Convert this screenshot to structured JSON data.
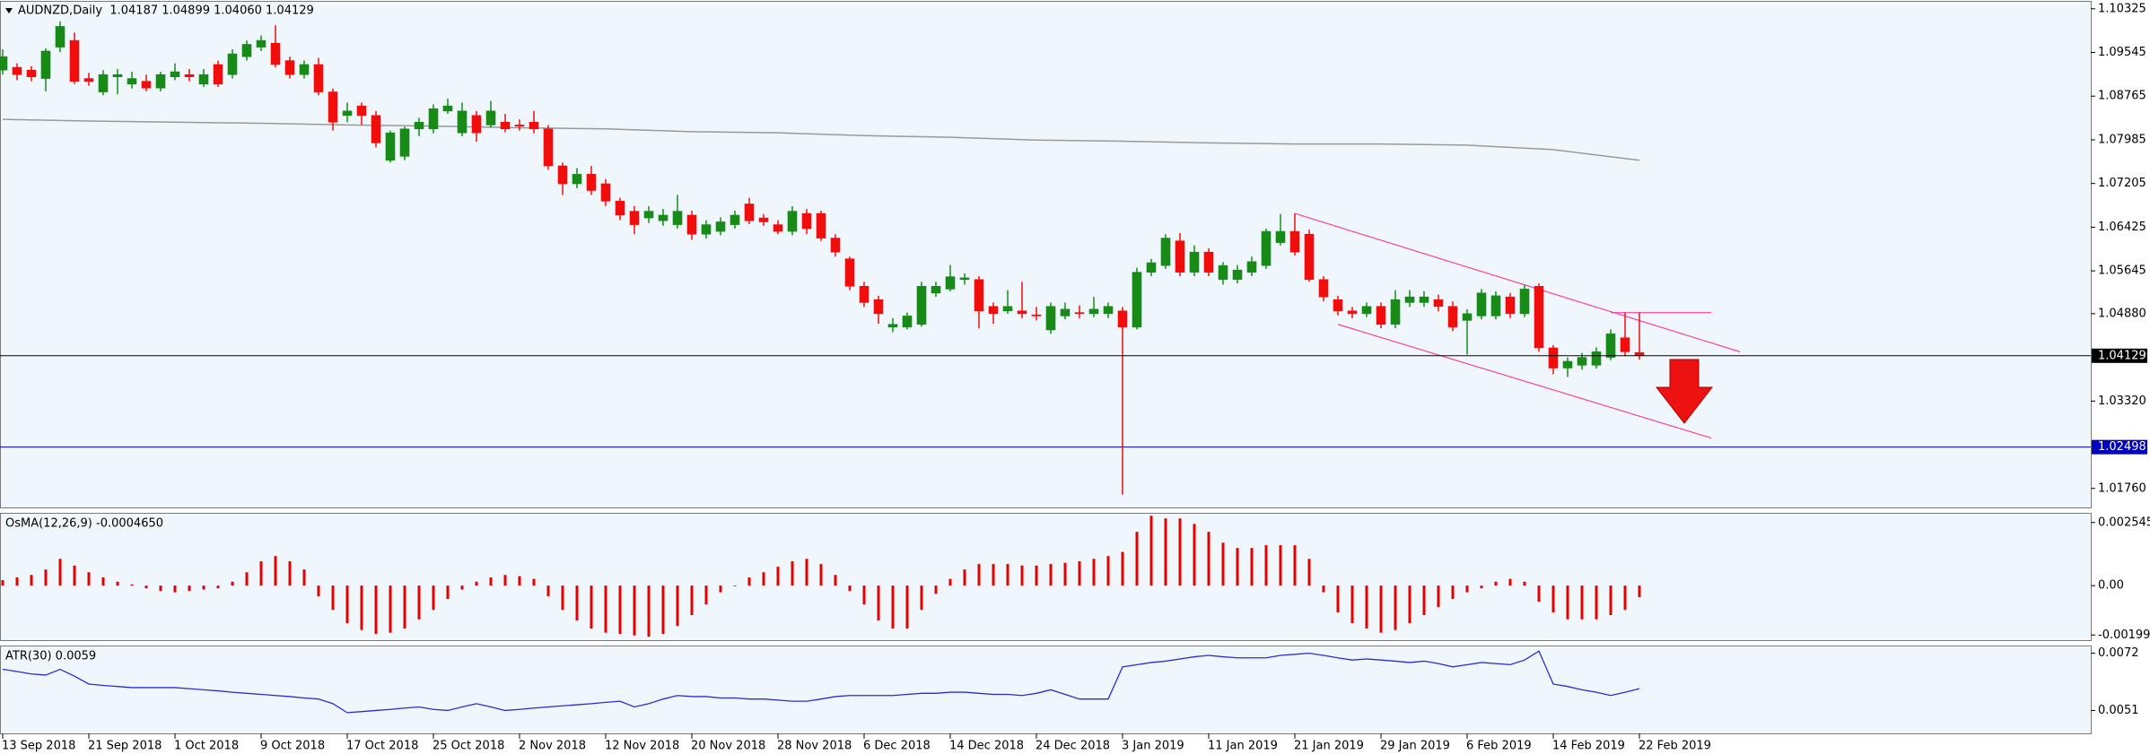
{
  "chart_data": [
    {
      "type": "candlestick",
      "title": "AUDNZD,Daily  1.04187 1.04899 1.04060 1.04129",
      "categories": [
        "13 Sep 2018",
        null,
        null,
        null,
        null,
        null,
        "21 Sep 2018",
        null,
        null,
        null,
        null,
        null,
        "1 Oct 2018",
        null,
        null,
        null,
        null,
        null,
        "9 Oct 2018",
        null,
        null,
        null,
        null,
        null,
        "17 Oct 2018",
        null,
        null,
        null,
        null,
        null,
        "25 Oct 2018",
        null,
        null,
        null,
        null,
        null,
        "2 Nov 2018",
        null,
        null,
        null,
        null,
        null,
        "12 Nov 2018",
        null,
        null,
        null,
        null,
        null,
        "20 Nov 2018",
        null,
        null,
        null,
        null,
        null,
        "28 Nov 2018",
        null,
        null,
        null,
        null,
        null,
        "6 Dec 2018",
        null,
        null,
        null,
        null,
        null,
        "14 Dec 2018",
        null,
        null,
        null,
        null,
        null,
        "24 Dec 2018",
        null,
        null,
        null,
        null,
        null,
        "3 Jan 2019",
        null,
        null,
        null,
        null,
        null,
        "11 Jan 2019",
        null,
        null,
        null,
        null,
        null,
        "21 Jan 2019",
        null,
        null,
        null,
        null,
        null,
        "29 Jan 2019",
        null,
        null,
        null,
        null,
        null,
        "6 Feb 2019",
        null,
        null,
        null,
        null,
        null,
        "14 Feb 2019",
        null,
        null,
        null,
        null,
        null,
        "22 Feb 2019"
      ],
      "open": [
        1.0923,
        1.0928,
        1.0923,
        1.0908,
        1.0964,
        1.0976,
        1.0908,
        1.0884,
        1.0911,
        1.0898,
        1.0903,
        1.0891,
        1.0911,
        1.0915,
        1.0898,
        1.0933,
        1.0915,
        1.0947,
        1.0964,
        1.0971,
        1.094,
        1.0915,
        1.0933,
        1.0884,
        1.0842,
        1.0859,
        1.0842,
        1.0762,
        1.0769,
        1.0818,
        1.0818,
        1.085,
        1.0811,
        1.0842,
        1.0825,
        1.083,
        1.0825,
        1.083,
        1.0818,
        1.0752,
        1.072,
        1.0737,
        1.072,
        1.0689,
        1.0671,
        1.0659,
        1.0654,
        1.0647,
        1.0664,
        1.063,
        1.0635,
        1.0647,
        1.0684,
        1.0659,
        1.0647,
        1.0635,
        1.0667,
        1.0667,
        1.0623,
        1.0586,
        1.0537,
        1.0513,
        1.0464,
        1.0464,
        1.0469,
        1.0525,
        1.0532,
        1.0549,
        1.0549,
        1.0501,
        1.0493,
        1.0493,
        1.0486,
        1.0459,
        1.0484,
        1.049,
        1.0488,
        1.0488,
        1.0493,
        1.0464,
        1.0562,
        1.0574,
        1.0618,
        1.0562,
        1.0598,
        1.0549,
        1.0549,
        1.0562,
        1.0574,
        1.0615,
        1.0635,
        1.063,
        1.0549,
        1.0513,
        1.0493,
        1.0488,
        1.0501,
        1.0469,
        1.0508,
        1.0508,
        1.0513,
        1.0501,
        1.0476,
        1.0484,
        1.0484,
        1.0518,
        1.0488,
        1.0537,
        1.0427,
        1.0391,
        1.0396,
        1.0396,
        1.041,
        1.0445,
        1.04187
      ],
      "high": [
        1.096,
        1.0935,
        1.093,
        1.0962,
        1.101,
        1.099,
        1.0918,
        1.0923,
        1.0925,
        1.092,
        1.0915,
        1.092,
        1.0935,
        1.0925,
        1.0925,
        1.094,
        1.096,
        1.0976,
        1.0985,
        1.1003,
        1.0947,
        1.094,
        1.0945,
        1.089,
        1.0865,
        1.0865,
        1.085,
        1.0815,
        1.0822,
        1.0838,
        1.0862,
        1.0872,
        1.0865,
        1.085,
        1.0868,
        1.0845,
        1.0835,
        1.085,
        1.0825,
        1.0758,
        1.0748,
        1.0752,
        1.0728,
        1.0695,
        1.068,
        1.068,
        1.0675,
        1.07,
        1.0672,
        1.0655,
        1.066,
        1.0672,
        1.0695,
        1.0666,
        1.0655,
        1.068,
        1.0675,
        1.0672,
        1.063,
        1.059,
        1.0545,
        1.052,
        1.048,
        1.049,
        1.0545,
        1.0545,
        1.0575,
        1.056,
        1.0555,
        1.0508,
        1.053,
        1.0545,
        1.05,
        1.0508,
        1.0508,
        1.0503,
        1.0518,
        1.0508,
        1.05,
        1.057,
        1.0586,
        1.063,
        1.0632,
        1.061,
        1.0605,
        1.058,
        1.0575,
        1.059,
        1.064,
        1.0666,
        1.0667,
        1.0638,
        1.0555,
        1.052,
        1.05,
        1.0508,
        1.0508,
        1.053,
        1.053,
        1.0528,
        1.0522,
        1.051,
        1.0496,
        1.0532,
        1.0528,
        1.0525,
        1.054,
        1.0542,
        1.0432,
        1.041,
        1.0418,
        1.0428,
        1.046,
        1.049,
        1.04899
      ],
      "low": [
        1.0915,
        1.0905,
        1.0903,
        1.0885,
        1.0955,
        1.0898,
        1.0895,
        1.0878,
        1.088,
        1.089,
        1.0885,
        1.0885,
        1.0905,
        1.0903,
        1.0893,
        1.0893,
        1.0908,
        1.094,
        1.0957,
        1.0928,
        1.0908,
        1.0908,
        1.0878,
        1.0815,
        1.083,
        1.0825,
        1.0785,
        1.0758,
        1.0762,
        1.0805,
        1.081,
        1.0845,
        1.0805,
        1.0795,
        1.082,
        1.0812,
        1.0815,
        1.081,
        1.0745,
        1.07,
        1.0712,
        1.07,
        1.068,
        1.0655,
        1.063,
        1.065,
        1.0645,
        1.064,
        1.062,
        1.0622,
        1.0628,
        1.064,
        1.0648,
        1.0645,
        1.063,
        1.0628,
        1.063,
        1.0618,
        1.059,
        1.053,
        1.05,
        1.047,
        1.0455,
        1.046,
        1.0465,
        1.0518,
        1.0528,
        1.054,
        1.0462,
        1.047,
        1.0488,
        1.048,
        1.0476,
        1.0452,
        1.0478,
        1.048,
        1.0482,
        1.048,
        1.0165,
        1.046,
        1.0555,
        1.0568,
        1.0555,
        1.0555,
        1.0555,
        1.054,
        1.0542,
        1.0555,
        1.0568,
        1.061,
        1.0592,
        1.0545,
        1.051,
        1.0485,
        1.048,
        1.0482,
        1.0462,
        1.0462,
        1.05,
        1.05,
        1.0492,
        1.0457,
        1.0415,
        1.0478,
        1.0478,
        1.048,
        1.0482,
        1.042,
        1.038,
        1.0375,
        1.0388,
        1.039,
        1.0405,
        1.0412,
        1.0406
      ],
      "close": [
        1.0947,
        1.0915,
        1.0911,
        1.0957,
        1.1001,
        1.0903,
        1.0903,
        1.0915,
        1.0915,
        1.0908,
        1.0891,
        1.0915,
        1.092,
        1.0911,
        1.0915,
        1.0898,
        1.0952,
        1.0969,
        1.0976,
        1.0933,
        1.0915,
        1.0933,
        1.0884,
        1.083,
        1.085,
        1.0842,
        1.0793,
        1.0811,
        1.0818,
        1.083,
        1.0854,
        1.0859,
        1.085,
        1.0811,
        1.085,
        1.0818,
        1.0823,
        1.0818,
        1.0752,
        1.072,
        1.0737,
        1.0708,
        1.0689,
        1.0664,
        1.0647,
        1.0671,
        1.0664,
        1.0671,
        1.063,
        1.0647,
        1.0652,
        1.0664,
        1.0654,
        1.0652,
        1.0635,
        1.0671,
        1.064,
        1.0623,
        1.0598,
        1.0537,
        1.0508,
        1.0488,
        1.0469,
        1.0484,
        1.0537,
        1.0537,
        1.0554,
        1.0552,
        1.0493,
        1.0488,
        1.0501,
        1.0488,
        1.0484,
        1.0501,
        1.0496,
        1.0488,
        1.0496,
        1.0501,
        1.0464,
        1.0562,
        1.0579,
        1.0623,
        1.0562,
        1.0598,
        1.0562,
        1.0574,
        1.0566,
        1.0581,
        1.0635,
        1.0635,
        1.0598,
        1.0549,
        1.0518,
        1.0493,
        1.0488,
        1.0501,
        1.0469,
        1.0513,
        1.0518,
        1.0518,
        1.0501,
        1.0464,
        1.0488,
        1.0525,
        1.052,
        1.0488,
        1.0532,
        1.0427,
        1.0391,
        1.0403,
        1.041,
        1.042,
        1.0452,
        1.042,
        1.04129
      ],
      "up_color": "#178a17",
      "down_color": "#f20d0d",
      "ylim": [
        1.0142,
        1.1045
      ],
      "yticks": [
        1.10325,
        1.09545,
        1.08765,
        1.07985,
        1.07205,
        1.06425,
        1.05645,
        {
          "value": 1.0488,
          "label": "1.04880"
        },
        {
          "value": 1.0332,
          "label": "1.03320"
        },
        {
          "value": 1.0176,
          "label": "1.01760"
        }
      ],
      "moving_average": {
        "color": "#9a9a9a",
        "x": [
          "13 Sep 2018",
          "21 Sep 2018",
          "1 Oct 2018",
          "9 Oct 2018",
          "17 Oct 2018",
          "25 Oct 2018",
          "2 Nov 2018",
          "12 Nov 2018",
          "20 Nov 2018",
          "28 Nov 2018",
          "6 Dec 2018",
          "14 Dec 2018",
          "24 Dec 2018",
          "3 Jan 2019",
          "11 Jan 2019",
          "21 Jan 2019",
          "29 Jan 2019",
          "6 Feb 2019",
          "14 Feb 2019",
          "22 Feb 2019"
        ],
        "values": [
          1.0835,
          1.0832,
          1.083,
          1.0828,
          1.0825,
          1.0823,
          1.082,
          1.0818,
          1.0813,
          1.0811,
          1.0806,
          1.0803,
          1.0798,
          1.0796,
          1.0793,
          1.0791,
          1.0791,
          1.0789,
          1.0781,
          1.0762
        ]
      },
      "price_line_color": "#000000",
      "level_line": {
        "value": 1.02498,
        "color": "#0000c0"
      },
      "channel": {
        "color": "#ff3fa0",
        "upper": [
          1.0667,
          1.042
        ],
        "lower": [
          1.0469,
          1.0266
        ],
        "level": 1.04899
      }
    },
    {
      "type": "histogram",
      "title": "OsMA(12,26,9) -0.0004650",
      "color": "#e60000",
      "values": [
        0.00022,
        0.00033,
        0.00043,
        0.00065,
        0.00108,
        0.00081,
        0.00054,
        0.00033,
        0.00016,
        5e-05,
        -0.00011,
        -0.00022,
        -0.00027,
        -0.00022,
        -0.00016,
        -0.00011,
        0.00016,
        0.00054,
        0.00098,
        0.00119,
        0.00098,
        0.00065,
        -0.00043,
        -0.00098,
        -0.00152,
        -0.00179,
        -0.00195,
        -0.0019,
        -0.00173,
        -0.00136,
        -0.00098,
        -0.00054,
        -0.00016,
        0.00016,
        0.00033,
        0.00043,
        0.00038,
        0.00027,
        -0.00043,
        -0.00098,
        -0.00141,
        -0.00173,
        -0.0019,
        -0.00195,
        -0.00201,
        -0.00206,
        -0.00195,
        -0.00163,
        -0.00119,
        -0.00076,
        -0.00027,
        -3e-05,
        0.00033,
        0.00054,
        0.00076,
        0.00098,
        0.00108,
        0.00087,
        0.00043,
        -0.00022,
        -0.00076,
        -0.00141,
        -0.00173,
        -0.00173,
        -0.00098,
        -0.00033,
        0.00027,
        0.00065,
        0.00087,
        0.00087,
        0.00087,
        0.00081,
        0.00081,
        0.00087,
        0.00092,
        0.00098,
        0.00108,
        0.00119,
        0.00136,
        0.00217,
        0.00282,
        0.00271,
        0.00271,
        0.00249,
        0.00217,
        0.00173,
        0.00152,
        0.00152,
        0.00163,
        0.00163,
        0.00163,
        0.00108,
        -0.00027,
        -0.00108,
        -0.00152,
        -0.00173,
        -0.0019,
        -0.00179,
        -0.00152,
        -0.00119,
        -0.00087,
        -0.00054,
        -0.00027,
        -0.00011,
        0.00016,
        0.00027,
        0.00016,
        -0.00065,
        -0.00108,
        -0.00136,
        -0.00136,
        -0.00136,
        -0.00119,
        -0.00098,
        -0.000465
      ],
      "ylim": [
        -0.0022,
        0.0029
      ],
      "yticks": [
        0.0025455,
        {
          "value": 0,
          "label": "0.00"
        },
        -0.0019927
      ]
    },
    {
      "type": "line",
      "title": "ATR(30) 0.0059",
      "color": "#2b2bd6",
      "values": [
        0.00661,
        0.00653,
        0.00644,
        0.0064,
        0.00661,
        0.00636,
        0.00607,
        0.00602,
        0.00598,
        0.00594,
        0.00594,
        0.00594,
        0.00594,
        0.0059,
        0.00586,
        0.00582,
        0.00577,
        0.00573,
        0.00569,
        0.00565,
        0.00561,
        0.00556,
        0.00552,
        0.00535,
        0.00502,
        0.00506,
        0.0051,
        0.00514,
        0.00519,
        0.00523,
        0.00514,
        0.0051,
        0.00523,
        0.00535,
        0.00523,
        0.0051,
        0.00514,
        0.00519,
        0.00523,
        0.00527,
        0.00531,
        0.00535,
        0.0054,
        0.00544,
        0.00523,
        0.00535,
        0.00552,
        0.00565,
        0.00561,
        0.00561,
        0.00556,
        0.00556,
        0.00552,
        0.00552,
        0.00548,
        0.00544,
        0.00544,
        0.00552,
        0.00561,
        0.00565,
        0.00565,
        0.00565,
        0.00565,
        0.00569,
        0.00573,
        0.00573,
        0.00577,
        0.00577,
        0.00573,
        0.00569,
        0.00569,
        0.00565,
        0.00573,
        0.00586,
        0.00569,
        0.00552,
        0.00552,
        0.00552,
        0.0067,
        0.00678,
        0.00686,
        0.00691,
        0.00699,
        0.00707,
        0.00712,
        0.00707,
        0.00703,
        0.00703,
        0.00703,
        0.00712,
        0.00716,
        0.0072,
        0.00712,
        0.00703,
        0.00695,
        0.00699,
        0.00695,
        0.00691,
        0.00686,
        0.00691,
        0.00682,
        0.0067,
        0.00678,
        0.00686,
        0.00682,
        0.00678,
        0.00695,
        0.00728,
        0.00607,
        0.00598,
        0.00586,
        0.00577,
        0.00565,
        0.00577,
        0.0059
      ],
      "ylim": [
        0.00426,
        0.00745
      ],
      "yticks": [
        0.0072,
        0.0051
      ]
    }
  ]
}
